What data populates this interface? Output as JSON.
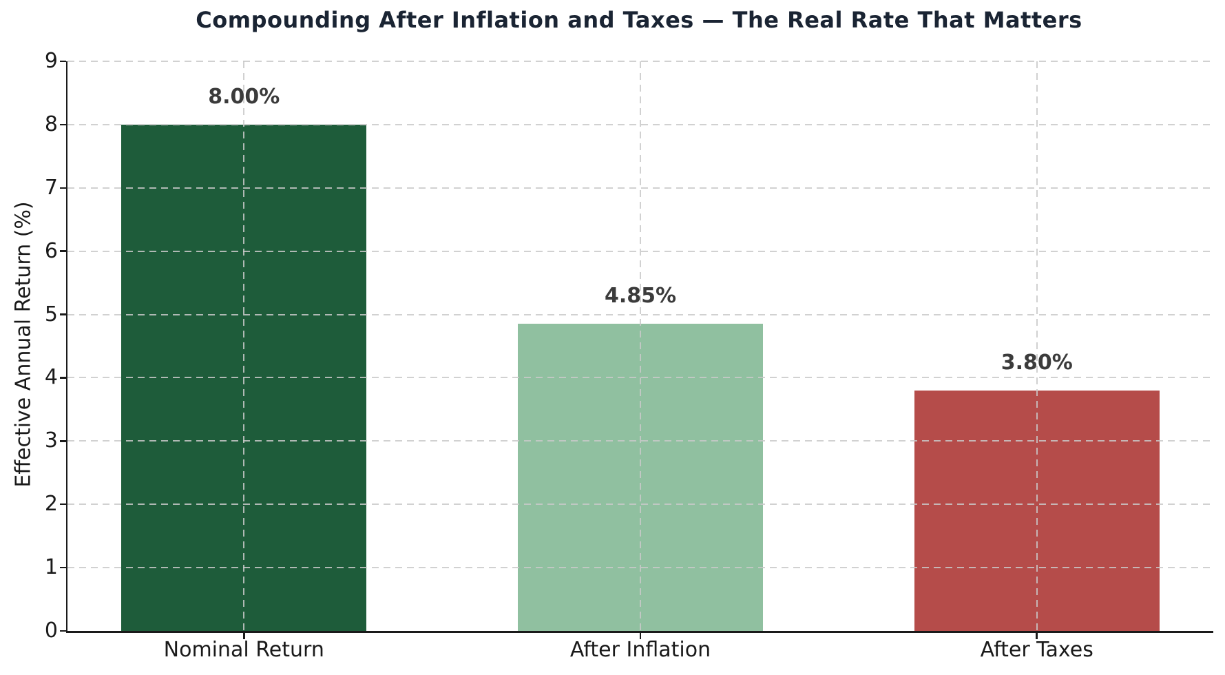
{
  "figure": {
    "background": "#ffffff"
  },
  "chart_data": {
    "type": "bar",
    "title": "Compounding After Inflation and Taxes — The Real Rate That Matters",
    "categories": [
      "Nominal Return",
      "After Inflation",
      "After Taxes"
    ],
    "values": [
      8.0,
      4.85,
      3.8
    ],
    "value_labels": [
      "8.00%",
      "4.85%",
      "3.80%"
    ],
    "bar_colors": [
      "#1e5c3a",
      "#90c0a0",
      "#b54c4a"
    ],
    "xlabel": "",
    "ylabel": "Effective Annual Return (%)",
    "ylim": [
      0,
      9
    ],
    "yticks": [
      0,
      1,
      2,
      3,
      4,
      5,
      6,
      7,
      8,
      9
    ],
    "grid": {
      "style": "dashed",
      "color": "#c9c9c9",
      "horizontal_lines_at": [
        1,
        2,
        3,
        4,
        5,
        6,
        7,
        8,
        9
      ],
      "vertical_lines_at_bar_centers": true,
      "drawn_above_bars": true
    },
    "legend": null,
    "colors": {
      "title": "#1a2433",
      "tick_label": "#1a1a1a",
      "value_label": "#3b3b3b",
      "axis": "#1a1a1a"
    }
  }
}
